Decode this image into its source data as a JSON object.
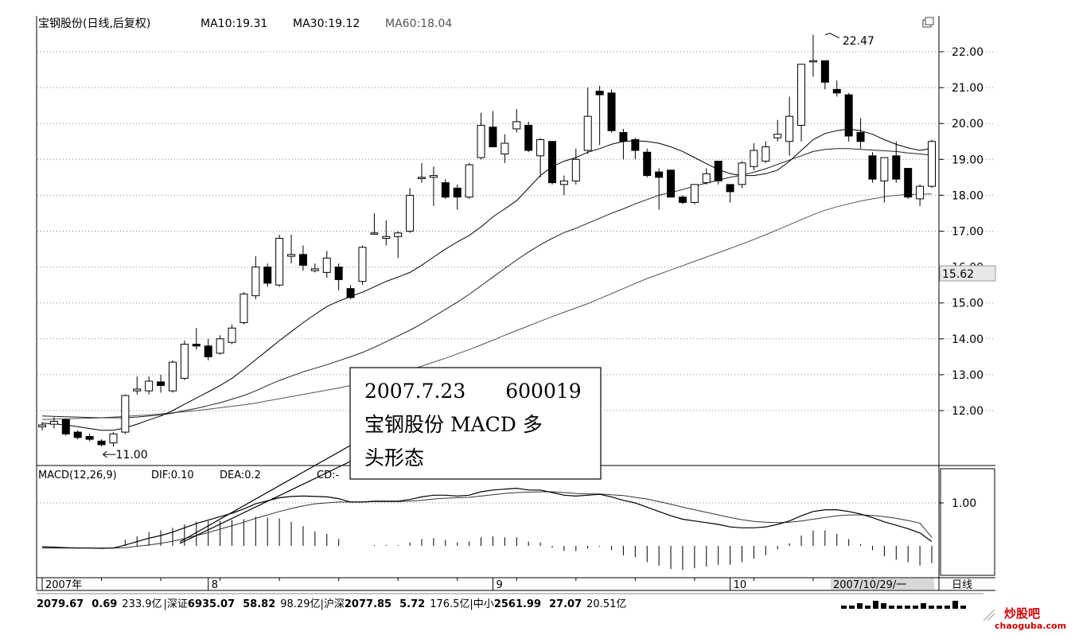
{
  "chart_data": [
    {
      "type": "candlestick",
      "title": "宝钢股份(日线,后复权)",
      "ma_labels": [
        {
          "text": "MA10:19.31",
          "color": "#000000"
        },
        {
          "text": "MA30:19.12",
          "color": "#000000"
        },
        {
          "text": "MA60:18.04",
          "color": "#555555"
        }
      ],
      "ylim": [
        10.6,
        22.9
      ],
      "yticks": [
        "22.00",
        "21.00",
        "20.00",
        "19.00",
        "18.00",
        "17.00",
        "16.00",
        "15.00",
        "14.00",
        "13.00",
        "12.00"
      ],
      "ytick_values": [
        22,
        21,
        20,
        19,
        18,
        17,
        16,
        15,
        14,
        13,
        12
      ],
      "current_price_label": "15.62",
      "current_price": 15.62,
      "max_annotation": {
        "text": "22.47",
        "value": 22.47,
        "index": 66
      },
      "min_annotation": {
        "text": "11.00",
        "value": 11.0,
        "index": 5
      },
      "candles": [
        [
          11.55,
          11.68,
          11.45,
          11.6
        ],
        [
          11.62,
          11.82,
          11.5,
          11.7
        ],
        [
          11.75,
          11.78,
          11.3,
          11.35
        ],
        [
          11.4,
          11.45,
          11.2,
          11.25
        ],
        [
          11.28,
          11.35,
          11.15,
          11.2
        ],
        [
          11.15,
          11.2,
          11.0,
          11.05
        ],
        [
          11.1,
          11.4,
          11.0,
          11.35
        ],
        [
          11.4,
          12.45,
          11.35,
          12.42
        ],
        [
          12.55,
          12.95,
          12.45,
          12.6
        ],
        [
          12.55,
          12.95,
          12.45,
          12.82
        ],
        [
          12.8,
          13.0,
          12.5,
          12.7
        ],
        [
          12.55,
          13.4,
          12.5,
          13.35
        ],
        [
          12.9,
          13.95,
          12.85,
          13.85
        ],
        [
          13.85,
          14.3,
          13.7,
          13.8
        ],
        [
          13.8,
          14.0,
          13.4,
          13.5
        ],
        [
          13.6,
          14.1,
          13.55,
          14.0
        ],
        [
          13.9,
          14.4,
          13.85,
          14.3
        ],
        [
          14.45,
          15.3,
          14.4,
          15.25
        ],
        [
          15.2,
          16.3,
          15.1,
          16.0
        ],
        [
          16.0,
          16.1,
          15.45,
          15.55
        ],
        [
          15.5,
          16.9,
          15.45,
          16.8
        ],
        [
          16.3,
          16.9,
          16.1,
          16.35
        ],
        [
          16.35,
          16.6,
          15.9,
          16.05
        ],
        [
          15.9,
          16.1,
          15.85,
          15.95
        ],
        [
          15.85,
          16.45,
          15.7,
          16.25
        ],
        [
          16.0,
          16.1,
          15.35,
          15.65
        ],
        [
          15.4,
          15.5,
          15.1,
          15.15
        ],
        [
          15.6,
          16.6,
          15.5,
          16.55
        ],
        [
          16.95,
          17.5,
          16.9,
          16.95
        ],
        [
          16.8,
          17.3,
          16.6,
          16.85
        ],
        [
          16.85,
          17.0,
          16.25,
          16.95
        ],
        [
          17.0,
          18.2,
          16.95,
          18.0
        ],
        [
          18.5,
          18.9,
          18.35,
          18.5
        ],
        [
          18.5,
          18.8,
          17.7,
          18.55
        ],
        [
          18.35,
          18.45,
          17.9,
          17.95
        ],
        [
          18.2,
          18.3,
          17.6,
          17.95
        ],
        [
          17.95,
          18.9,
          17.9,
          18.85
        ],
        [
          19.05,
          20.3,
          19.0,
          19.95
        ],
        [
          19.9,
          20.35,
          19.4,
          19.35
        ],
        [
          19.15,
          19.7,
          18.9,
          19.45
        ],
        [
          19.85,
          20.4,
          19.75,
          20.05
        ],
        [
          19.95,
          20.05,
          19.2,
          19.25
        ],
        [
          19.1,
          19.6,
          18.5,
          19.55
        ],
        [
          19.5,
          19.5,
          18.3,
          18.35
        ],
        [
          18.3,
          18.55,
          18.0,
          18.4
        ],
        [
          18.4,
          19.3,
          18.3,
          19.0
        ],
        [
          19.25,
          21.0,
          19.15,
          20.2
        ],
        [
          20.9,
          21.05,
          19.4,
          20.8
        ],
        [
          20.85,
          20.95,
          19.75,
          19.8
        ],
        [
          19.75,
          19.85,
          19.0,
          19.5
        ],
        [
          19.55,
          19.6,
          19.0,
          19.25
        ],
        [
          19.2,
          19.3,
          18.5,
          18.55
        ],
        [
          18.65,
          18.75,
          17.6,
          18.5
        ],
        [
          18.7,
          18.7,
          18.0,
          17.95
        ],
        [
          17.95,
          18.0,
          17.75,
          17.8
        ],
        [
          17.8,
          18.3,
          17.75,
          18.3
        ],
        [
          18.35,
          18.75,
          18.3,
          18.6
        ],
        [
          18.95,
          18.95,
          18.3,
          18.4
        ],
        [
          18.3,
          18.3,
          17.8,
          18.1
        ],
        [
          18.3,
          18.95,
          18.2,
          18.9
        ],
        [
          18.8,
          19.45,
          18.7,
          19.25
        ],
        [
          18.95,
          19.5,
          18.9,
          19.35
        ],
        [
          19.6,
          20.1,
          19.5,
          19.7
        ],
        [
          19.5,
          20.75,
          19.1,
          20.2
        ],
        [
          19.95,
          21.65,
          19.5,
          21.65
        ],
        [
          21.75,
          22.47,
          21.3,
          21.75
        ],
        [
          21.75,
          21.75,
          20.95,
          21.15
        ],
        [
          20.95,
          21.2,
          20.75,
          20.85
        ],
        [
          20.8,
          20.85,
          19.5,
          19.65
        ],
        [
          19.75,
          20.15,
          19.3,
          19.5
        ],
        [
          19.1,
          19.2,
          18.35,
          18.45
        ],
        [
          18.4,
          19.0,
          17.8,
          19.05
        ],
        [
          19.1,
          19.5,
          18.35,
          18.45
        ],
        [
          18.75,
          18.75,
          17.9,
          17.95
        ],
        [
          17.9,
          18.3,
          17.7,
          18.25
        ],
        [
          18.25,
          19.55,
          18.2,
          19.5
        ]
      ],
      "ma10": [
        11.65,
        11.63,
        11.6,
        11.55,
        11.5,
        11.45,
        11.45,
        11.52,
        11.62,
        11.74,
        11.85,
        12.0,
        12.18,
        12.35,
        12.52,
        12.7,
        12.9,
        13.15,
        13.42,
        13.68,
        13.95,
        14.2,
        14.45,
        14.68,
        14.9,
        15.05,
        15.18,
        15.3,
        15.45,
        15.6,
        15.72,
        15.85,
        16.05,
        16.28,
        16.5,
        16.7,
        16.88,
        17.12,
        17.4,
        17.62,
        17.85,
        18.2,
        18.55,
        18.8,
        18.95,
        19.05,
        19.2,
        19.3,
        19.42,
        19.5,
        19.52,
        19.5,
        19.45,
        19.35,
        19.22,
        19.05,
        18.88,
        18.72,
        18.6,
        18.55,
        18.55,
        18.6,
        18.7,
        18.95,
        19.25,
        19.55,
        19.72,
        19.8,
        19.85,
        19.8,
        19.7,
        19.55,
        19.42,
        19.32,
        19.25,
        19.31
      ],
      "ma30": [
        11.85,
        11.84,
        11.83,
        11.82,
        11.81,
        11.8,
        11.8,
        11.8,
        11.82,
        11.85,
        11.88,
        11.93,
        12.0,
        12.06,
        12.14,
        12.22,
        12.32,
        12.42,
        12.55,
        12.7,
        12.84,
        12.96,
        13.08,
        13.18,
        13.28,
        13.39,
        13.5,
        13.62,
        13.76,
        13.92,
        14.08,
        14.24,
        14.42,
        14.62,
        14.82,
        15.02,
        15.24,
        15.48,
        15.72,
        15.96,
        16.2,
        16.42,
        16.62,
        16.8,
        16.96,
        17.08,
        17.22,
        17.36,
        17.5,
        17.62,
        17.76,
        17.88,
        18.0,
        18.08,
        18.16,
        18.26,
        18.34,
        18.42,
        18.5,
        18.56,
        18.64,
        18.74,
        18.86,
        18.98,
        19.1,
        19.22,
        19.28,
        19.3,
        19.3,
        19.28,
        19.26,
        19.24,
        19.22,
        19.18,
        19.15,
        19.12
      ],
      "ma60": [
        11.75,
        11.76,
        11.77,
        11.78,
        11.79,
        11.8,
        11.82,
        11.84,
        11.86,
        11.88,
        11.91,
        11.94,
        11.97,
        12.0,
        12.04,
        12.08,
        12.12,
        12.16,
        12.21,
        12.27,
        12.33,
        12.39,
        12.45,
        12.51,
        12.57,
        12.63,
        12.7,
        12.78,
        12.86,
        12.94,
        13.04,
        13.14,
        13.24,
        13.35,
        13.46,
        13.58,
        13.7,
        13.83,
        13.96,
        14.1,
        14.23,
        14.36,
        14.49,
        14.62,
        14.74,
        14.86,
        14.98,
        15.12,
        15.26,
        15.4,
        15.54,
        15.68,
        15.8,
        15.92,
        16.04,
        16.16,
        16.28,
        16.4,
        16.52,
        16.64,
        16.77,
        16.9,
        17.04,
        17.18,
        17.32,
        17.46,
        17.58,
        17.68,
        17.76,
        17.84,
        17.9,
        17.96,
        18.0,
        18.02,
        18.03,
        18.04
      ]
    },
    {
      "type": "macd",
      "title": "MACD(12,26,9)",
      "dif_label": "DIF:0.10",
      "dea_label": "DEA:0.2",
      "macd_label": "CD:-",
      "ylim": [
        -0.75,
        1.75
      ],
      "yticks": [
        "1.00"
      ],
      "ytick_values": [
        1.0
      ],
      "dif": [
        -0.02,
        -0.03,
        -0.04,
        -0.05,
        -0.05,
        -0.06,
        -0.05,
        0.02,
        0.1,
        0.18,
        0.24,
        0.32,
        0.42,
        0.52,
        0.6,
        0.68,
        0.76,
        0.86,
        0.98,
        1.05,
        1.12,
        1.15,
        1.16,
        1.15,
        1.14,
        1.1,
        1.02,
        1.02,
        1.04,
        1.04,
        1.04,
        1.08,
        1.14,
        1.18,
        1.18,
        1.16,
        1.18,
        1.26,
        1.3,
        1.32,
        1.34,
        1.3,
        1.3,
        1.24,
        1.18,
        1.16,
        1.18,
        1.2,
        1.14,
        1.06,
        1.0,
        0.9,
        0.8,
        0.7,
        0.62,
        0.58,
        0.54,
        0.5,
        0.44,
        0.42,
        0.42,
        0.44,
        0.5,
        0.58,
        0.7,
        0.8,
        0.84,
        0.84,
        0.8,
        0.74,
        0.66,
        0.56,
        0.48,
        0.4,
        0.3,
        0.1
      ],
      "dea": [
        -0.05,
        -0.05,
        -0.05,
        -0.05,
        -0.05,
        -0.05,
        -0.05,
        -0.04,
        -0.01,
        0.02,
        0.06,
        0.11,
        0.17,
        0.24,
        0.31,
        0.39,
        0.47,
        0.55,
        0.64,
        0.72,
        0.8,
        0.87,
        0.93,
        0.98,
        1.0,
        1.02,
        1.02,
        1.02,
        1.03,
        1.03,
        1.03,
        1.04,
        1.06,
        1.09,
        1.11,
        1.12,
        1.13,
        1.16,
        1.19,
        1.22,
        1.24,
        1.25,
        1.26,
        1.26,
        1.24,
        1.22,
        1.21,
        1.21,
        1.19,
        1.17,
        1.13,
        1.09,
        1.03,
        0.97,
        0.9,
        0.84,
        0.78,
        0.72,
        0.66,
        0.61,
        0.57,
        0.55,
        0.54,
        0.55,
        0.58,
        0.62,
        0.66,
        0.7,
        0.72,
        0.72,
        0.71,
        0.68,
        0.64,
        0.59,
        0.53,
        0.2
      ],
      "hist": [
        0.0,
        0.0,
        0.0,
        0.0,
        0.0,
        0.0,
        0.0,
        0.14,
        0.22,
        0.32,
        0.36,
        0.42,
        0.5,
        0.56,
        0.58,
        0.58,
        0.6,
        0.62,
        0.68,
        0.66,
        0.64,
        0.56,
        0.46,
        0.34,
        0.28,
        0.16,
        0.0,
        0.0,
        0.02,
        0.02,
        0.02,
        0.08,
        0.16,
        0.18,
        0.14,
        0.08,
        0.1,
        0.2,
        0.22,
        0.2,
        0.2,
        0.1,
        0.08,
        -0.04,
        -0.12,
        -0.12,
        -0.06,
        -0.02,
        -0.1,
        -0.22,
        -0.26,
        -0.38,
        -0.46,
        -0.54,
        -0.56,
        -0.52,
        -0.48,
        -0.44,
        -0.44,
        -0.38,
        -0.3,
        -0.22,
        -0.08,
        0.06,
        0.24,
        0.36,
        0.36,
        0.28,
        0.16,
        0.04,
        -0.1,
        -0.24,
        -0.32,
        -0.38,
        -0.46,
        -0.4
      ]
    }
  ],
  "x_axis": {
    "labels": [
      "2007年",
      "8",
      "9",
      "10"
    ],
    "label_indices": [
      0,
      14,
      38,
      58
    ],
    "end_date": "2007/10/29/一",
    "period": "日线"
  },
  "annotation": {
    "line1": "2007.7.23　　600019",
    "line2": "宝钢股份 MACD 多",
    "line3": "头形态"
  },
  "status_bar": {
    "index_value": "2079.67",
    "index_change": "0.69",
    "index_volume": "233.9亿",
    "sz_label": "深证",
    "sz_value": "6935.07",
    "sz_change": "58.82",
    "sz_volume": "98.29亿",
    "hs_label": "沪深",
    "hs_value": "2077.85",
    "hs_change": "5.72",
    "hs_volume": "176.5亿",
    "zx_label": "中小",
    "zx_value": "2561.99",
    "zx_change": "27.07",
    "zx_volume": "20.51亿"
  },
  "watermark": {
    "text": "炒股吧",
    "url": "chaoguba.com"
  },
  "colors": {
    "candle_up": "#ffffff",
    "candle_down": "#000000",
    "grid": "#999999",
    "watermark": "#cc0000",
    "text": "#000000"
  }
}
